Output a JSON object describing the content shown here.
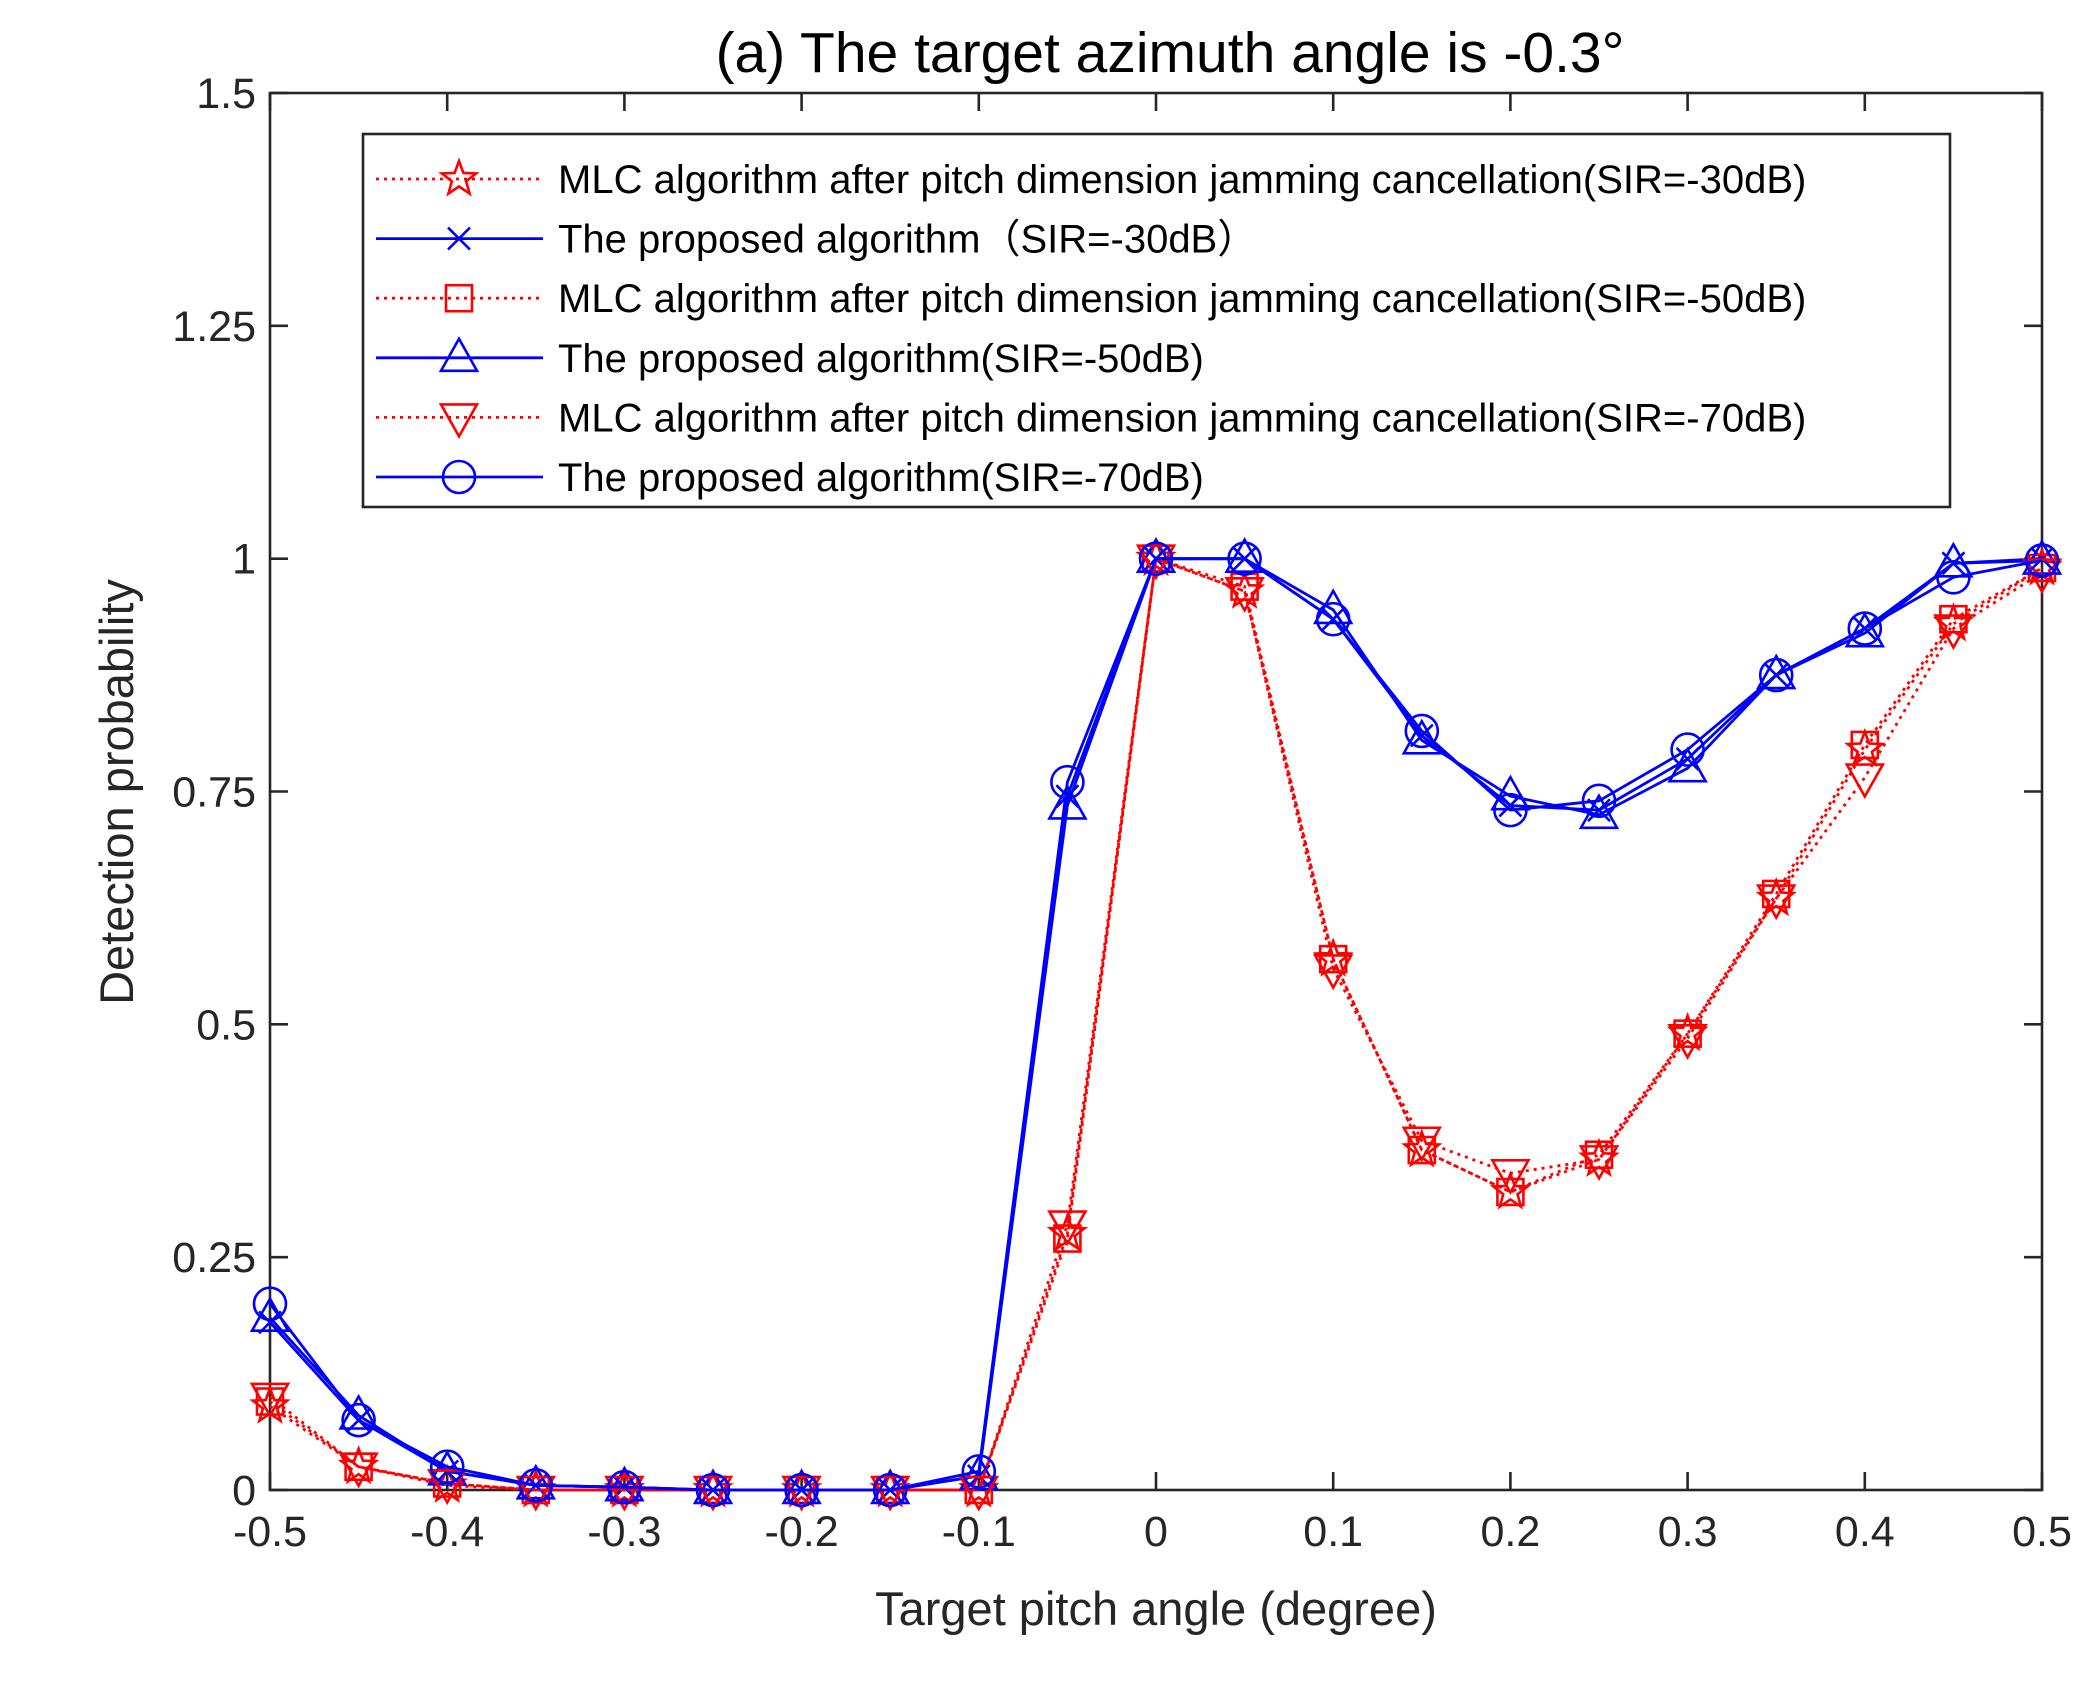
{
  "colors": {
    "red": "#ff0000",
    "blue": "#0000ff",
    "axis": "#262626"
  },
  "chart_data": {
    "type": "line",
    "title": "(a) The target azimuth angle is -0.3°",
    "xlabel": "Target pitch angle (degree)",
    "ylabel": "Detection probability",
    "xlim": [
      -0.5,
      0.5
    ],
    "ylim": [
      0,
      1.5
    ],
    "xticks": [
      -0.5,
      -0.4,
      -0.3,
      -0.2,
      -0.1,
      0,
      0.1,
      0.2,
      0.3,
      0.4,
      0.5
    ],
    "xtick_labels": [
      "-0.5",
      "-0.4",
      "-0.3",
      "-0.2",
      "-0.1",
      "0",
      "0.1",
      "0.2",
      "0.3",
      "0.4",
      "0.5"
    ],
    "yticks": [
      0,
      0.25,
      0.5,
      0.75,
      1,
      1.25,
      1.5
    ],
    "ytick_labels": [
      "0",
      "0.25",
      "0.5",
      "0.75",
      "1",
      "1.25",
      "1.5"
    ],
    "grid": false,
    "legend_position": "top",
    "x": [
      -0.5,
      -0.45,
      -0.4,
      -0.35,
      -0.3,
      -0.25,
      -0.2,
      -0.15,
      -0.1,
      -0.05,
      0,
      0.05,
      0.1,
      0.15,
      0.2,
      0.25,
      0.3,
      0.35,
      0.4,
      0.45,
      0.5
    ],
    "series": [
      {
        "name": "MLC algorithm after pitch dimension jamming cancellation(SIR=-30dB)",
        "color": "red",
        "line": "dotted",
        "marker": "star",
        "values": [
          0.09,
          0.025,
          0.005,
          0.0,
          0.0,
          0.0,
          0.0,
          0.0,
          0.0,
          0.275,
          1.0,
          0.965,
          0.57,
          0.365,
          0.32,
          0.355,
          0.49,
          0.635,
          0.795,
          0.93,
          0.99
        ]
      },
      {
        "name": "The proposed algorithm（SIR=-30dB）",
        "color": "blue",
        "line": "solid",
        "marker": "x",
        "values": [
          0.18,
          0.075,
          0.02,
          0.005,
          0.003,
          0.0,
          0.0,
          0.0,
          0.015,
          0.745,
          1.0,
          1.0,
          0.935,
          0.81,
          0.735,
          0.73,
          0.785,
          0.875,
          0.925,
          0.995,
          1.0
        ]
      },
      {
        "name": "MLC algorithm after pitch dimension jamming cancellation(SIR=-50dB)",
        "color": "red",
        "line": "dotted",
        "marker": "square",
        "values": [
          0.095,
          0.025,
          0.007,
          0.0,
          0.0,
          0.0,
          0.0,
          0.0,
          0.0,
          0.27,
          1.0,
          0.97,
          0.57,
          0.365,
          0.32,
          0.36,
          0.49,
          0.64,
          0.8,
          0.935,
          0.99
        ]
      },
      {
        "name": "The proposed algorithm(SIR=-50dB)",
        "color": "blue",
        "line": "solid",
        "marker": "triangle-up",
        "values": [
          0.185,
          0.08,
          0.02,
          0.005,
          0.003,
          0.0,
          0.0,
          0.0,
          0.015,
          0.735,
          1.0,
          1.0,
          0.945,
          0.805,
          0.745,
          0.725,
          0.775,
          0.875,
          0.92,
          0.995,
          0.998
        ]
      },
      {
        "name": "MLC algorithm after pitch dimension jamming cancellation(SIR=-70dB)",
        "color": "red",
        "line": "dotted",
        "marker": "triangle-down",
        "values": [
          0.1,
          0.025,
          0.007,
          0.0,
          0.0,
          0.0,
          0.0,
          0.0,
          0.0,
          0.285,
          1.0,
          0.965,
          0.56,
          0.375,
          0.34,
          0.355,
          0.485,
          0.635,
          0.765,
          0.925,
          0.985
        ]
      },
      {
        "name": "The proposed algorithm(SIR=-70dB)",
        "color": "blue",
        "line": "solid",
        "marker": "circle",
        "values": [
          0.2,
          0.075,
          0.025,
          0.005,
          0.003,
          0.0,
          0.0,
          0.0,
          0.02,
          0.76,
          1.0,
          1.0,
          0.935,
          0.815,
          0.73,
          0.74,
          0.795,
          0.875,
          0.925,
          0.98,
          0.998
        ]
      }
    ]
  }
}
